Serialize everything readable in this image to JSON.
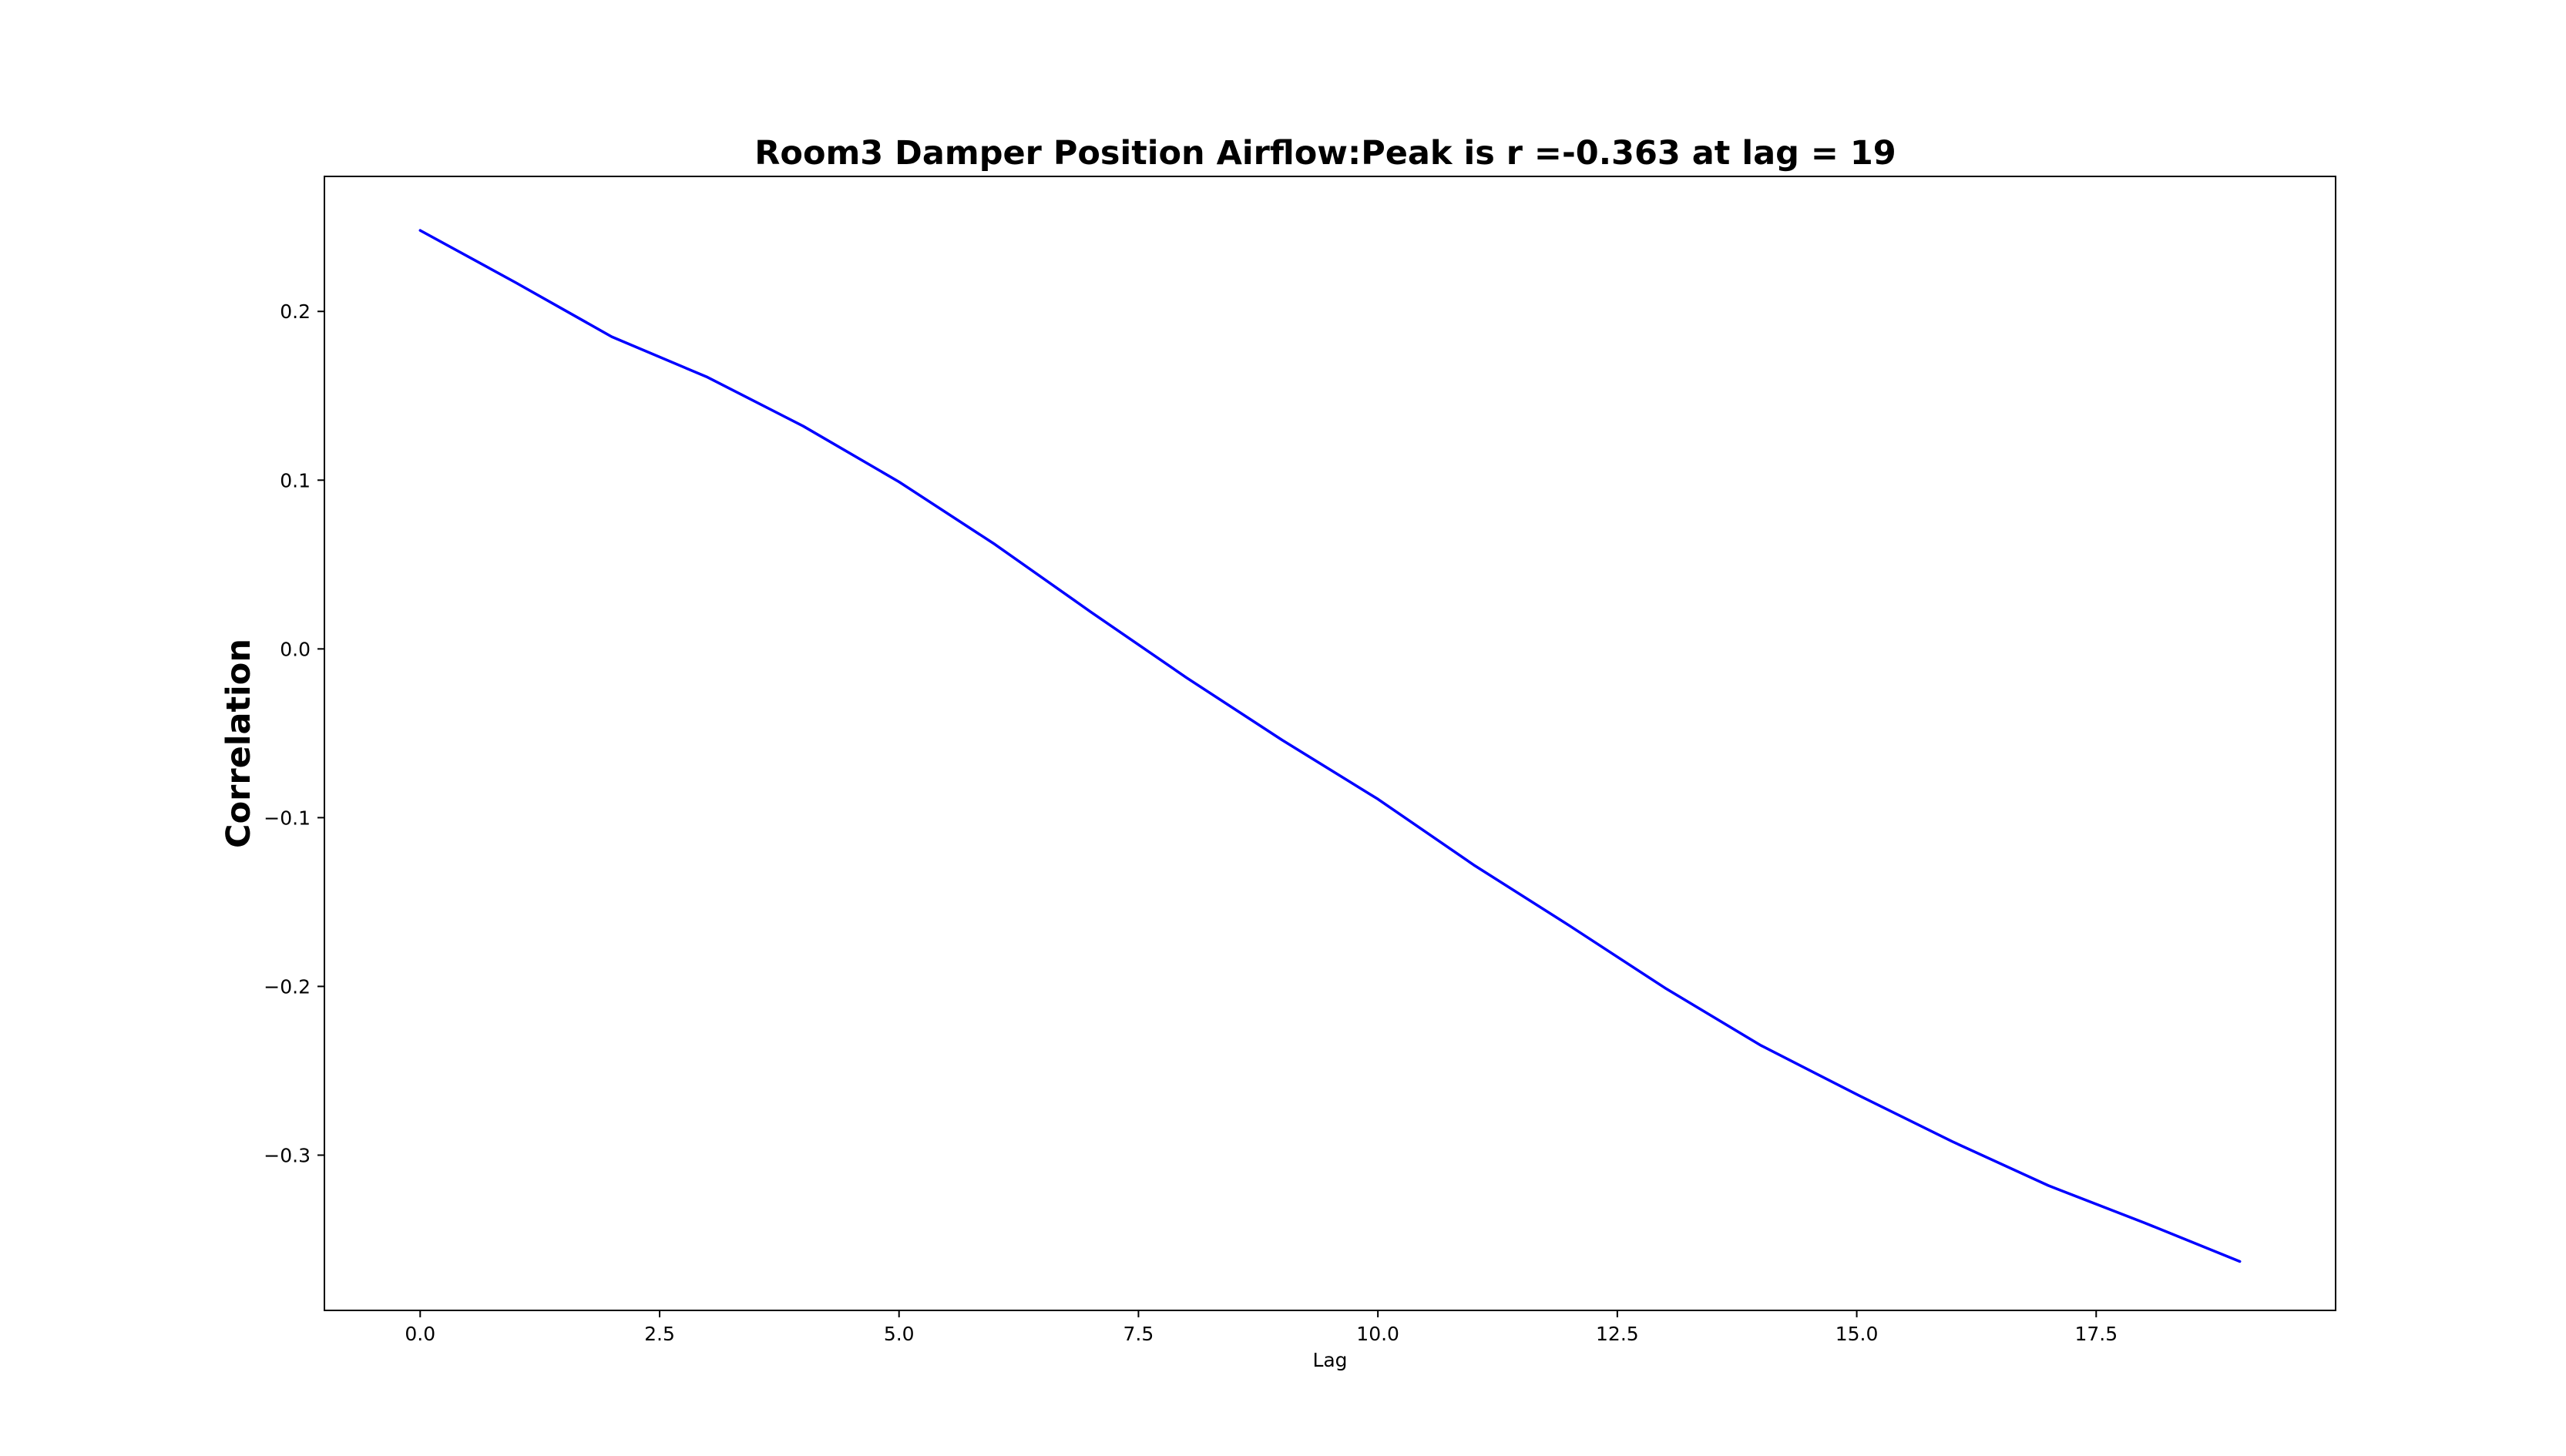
{
  "chart_data": {
    "type": "line",
    "title": "Room3 Damper Position Airflow:Peak is r =-0.363 at lag = 19",
    "xlabel": "Lag",
    "ylabel": "Correlation",
    "xlim": [
      -1.0,
      20.0
    ],
    "ylim": [
      -0.392,
      0.28
    ],
    "x_ticks": [
      0.0,
      2.5,
      5.0,
      7.5,
      10.0,
      12.5,
      15.0,
      17.5
    ],
    "x_tick_labels": [
      "0.0",
      "2.5",
      "5.0",
      "7.5",
      "10.0",
      "12.5",
      "15.0",
      "17.5"
    ],
    "y_ticks": [
      0.2,
      0.1,
      0.0,
      -0.1,
      -0.2,
      -0.3
    ],
    "y_tick_labels": [
      "0.2",
      "0.1",
      "0.0",
      "−0.1",
      "−0.2",
      "−0.3"
    ],
    "grid": false,
    "line_color": "#0000ff",
    "series": [
      {
        "x": [
          0,
          1,
          2,
          3,
          4,
          5,
          6,
          7,
          8,
          9,
          10,
          11,
          12,
          13,
          14,
          15,
          16,
          17,
          18,
          19
        ],
        "values": [
          0.248,
          0.217,
          0.185,
          0.161,
          0.132,
          0.099,
          0.062,
          0.022,
          -0.017,
          -0.054,
          -0.089,
          -0.128,
          -0.164,
          -0.201,
          -0.235,
          -0.264,
          -0.292,
          -0.318,
          -0.34,
          -0.363
        ]
      }
    ]
  }
}
